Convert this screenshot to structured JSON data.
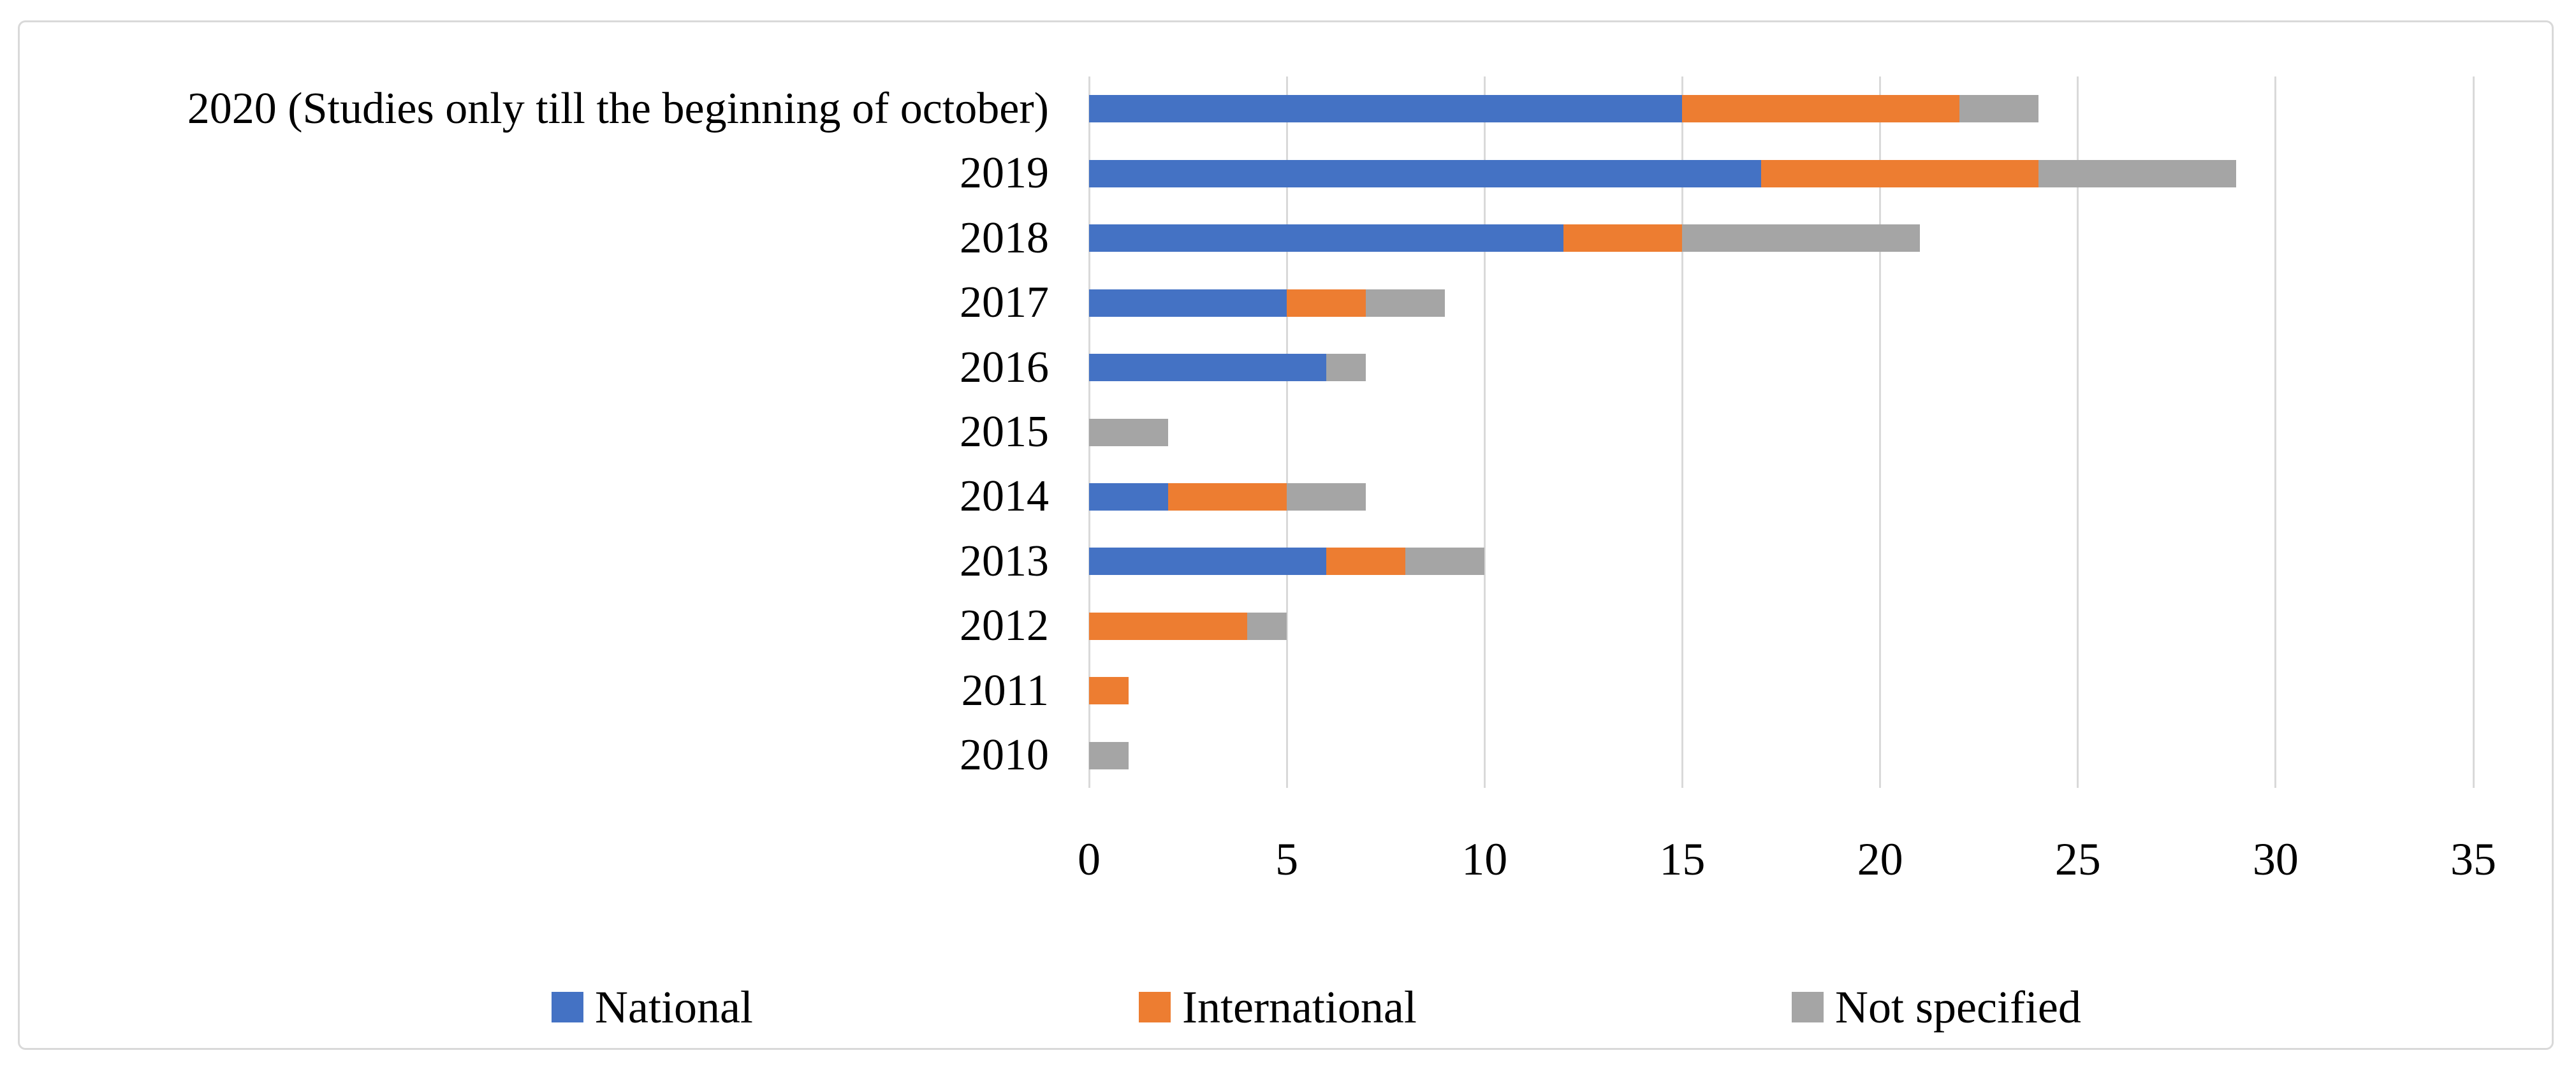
{
  "figure": {
    "background": "#FFFFFF",
    "frame_border_color": "#D9D9D9"
  },
  "chart_data": {
    "type": "bar",
    "orientation": "horizontal",
    "stacked": true,
    "title": "",
    "xlabel": "",
    "ylabel": "",
    "categories": [
      "2020 (Studies only till the beginning of october)",
      "2019",
      "2018",
      "2017",
      "2016",
      "2015",
      "2014",
      "2013",
      "2012",
      "2011",
      "2010"
    ],
    "series": [
      {
        "name": "National",
        "color": "#4472C4",
        "values": [
          15,
          17,
          12,
          5,
          6,
          0,
          2,
          6,
          0,
          0,
          0
        ]
      },
      {
        "name": "International",
        "color": "#ED7D31",
        "values": [
          7,
          7,
          3,
          2,
          0,
          0,
          3,
          2,
          4,
          1,
          0
        ]
      },
      {
        "name": "Not specified",
        "color": "#A5A5A5",
        "values": [
          2,
          5,
          6,
          2,
          1,
          2,
          2,
          2,
          1,
          0,
          1
        ]
      }
    ],
    "totals": [
      24,
      29,
      21,
      9,
      7,
      2,
      7,
      10,
      5,
      1,
      1
    ],
    "xlim": [
      0,
      35
    ],
    "xticks": [
      0,
      5,
      10,
      15,
      20,
      25,
      30,
      35
    ],
    "grid": true,
    "gridline_color": "#D9D9D9",
    "axis_text_color": "#000000",
    "legend_position": "bottom"
  }
}
